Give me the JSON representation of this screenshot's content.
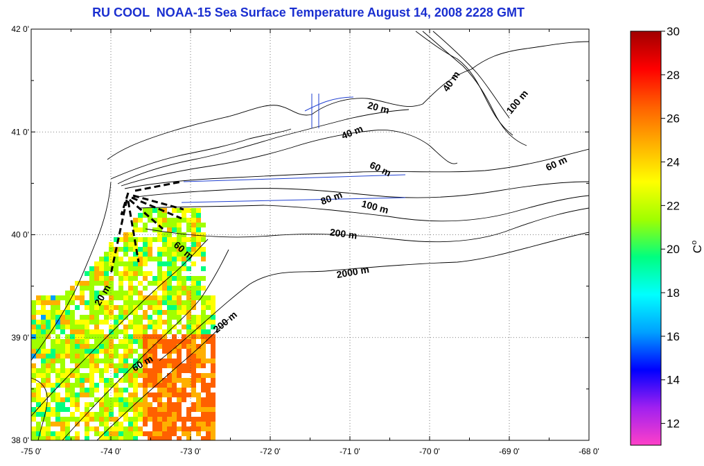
{
  "title": "RU COOL  NOAA-15 Sea Surface Temperature August 14, 2008 2228 GMT",
  "map": {
    "lon_range": [
      -75,
      -68
    ],
    "lat_range": [
      38,
      42
    ],
    "x_ticks": [
      "-75 0'",
      "-74 0'",
      "-73 0'",
      "-72 0'",
      "-71 0'",
      "-70 0'",
      "-69 0'",
      "-68 0'"
    ],
    "y_ticks": [
      "42 0'",
      "41 0'",
      "40 0'",
      "39 0'",
      "38 0'"
    ],
    "grid": "dotted",
    "contour_labels": [
      "20 m",
      "40 m",
      "60 m",
      "80 m",
      "100 m",
      "200 m",
      "2000 m",
      "40 m",
      "100 m",
      "60 m",
      "20 m",
      "60 m",
      "60 m",
      "200 m"
    ]
  },
  "colorbar": {
    "unit": "C",
    "superscript": "o",
    "ticks": [
      "30",
      "28",
      "26",
      "24",
      "22",
      "20",
      "18",
      "16",
      "14",
      "12"
    ],
    "range": [
      11,
      30
    ],
    "colors": [
      "#ff40c8",
      "#a020f0",
      "#0000ff",
      "#00a0ff",
      "#00ffff",
      "#00ff80",
      "#a0ff00",
      "#ffff00",
      "#ffb000",
      "#ff6000",
      "#ff0000",
      "#a00000"
    ]
  }
}
